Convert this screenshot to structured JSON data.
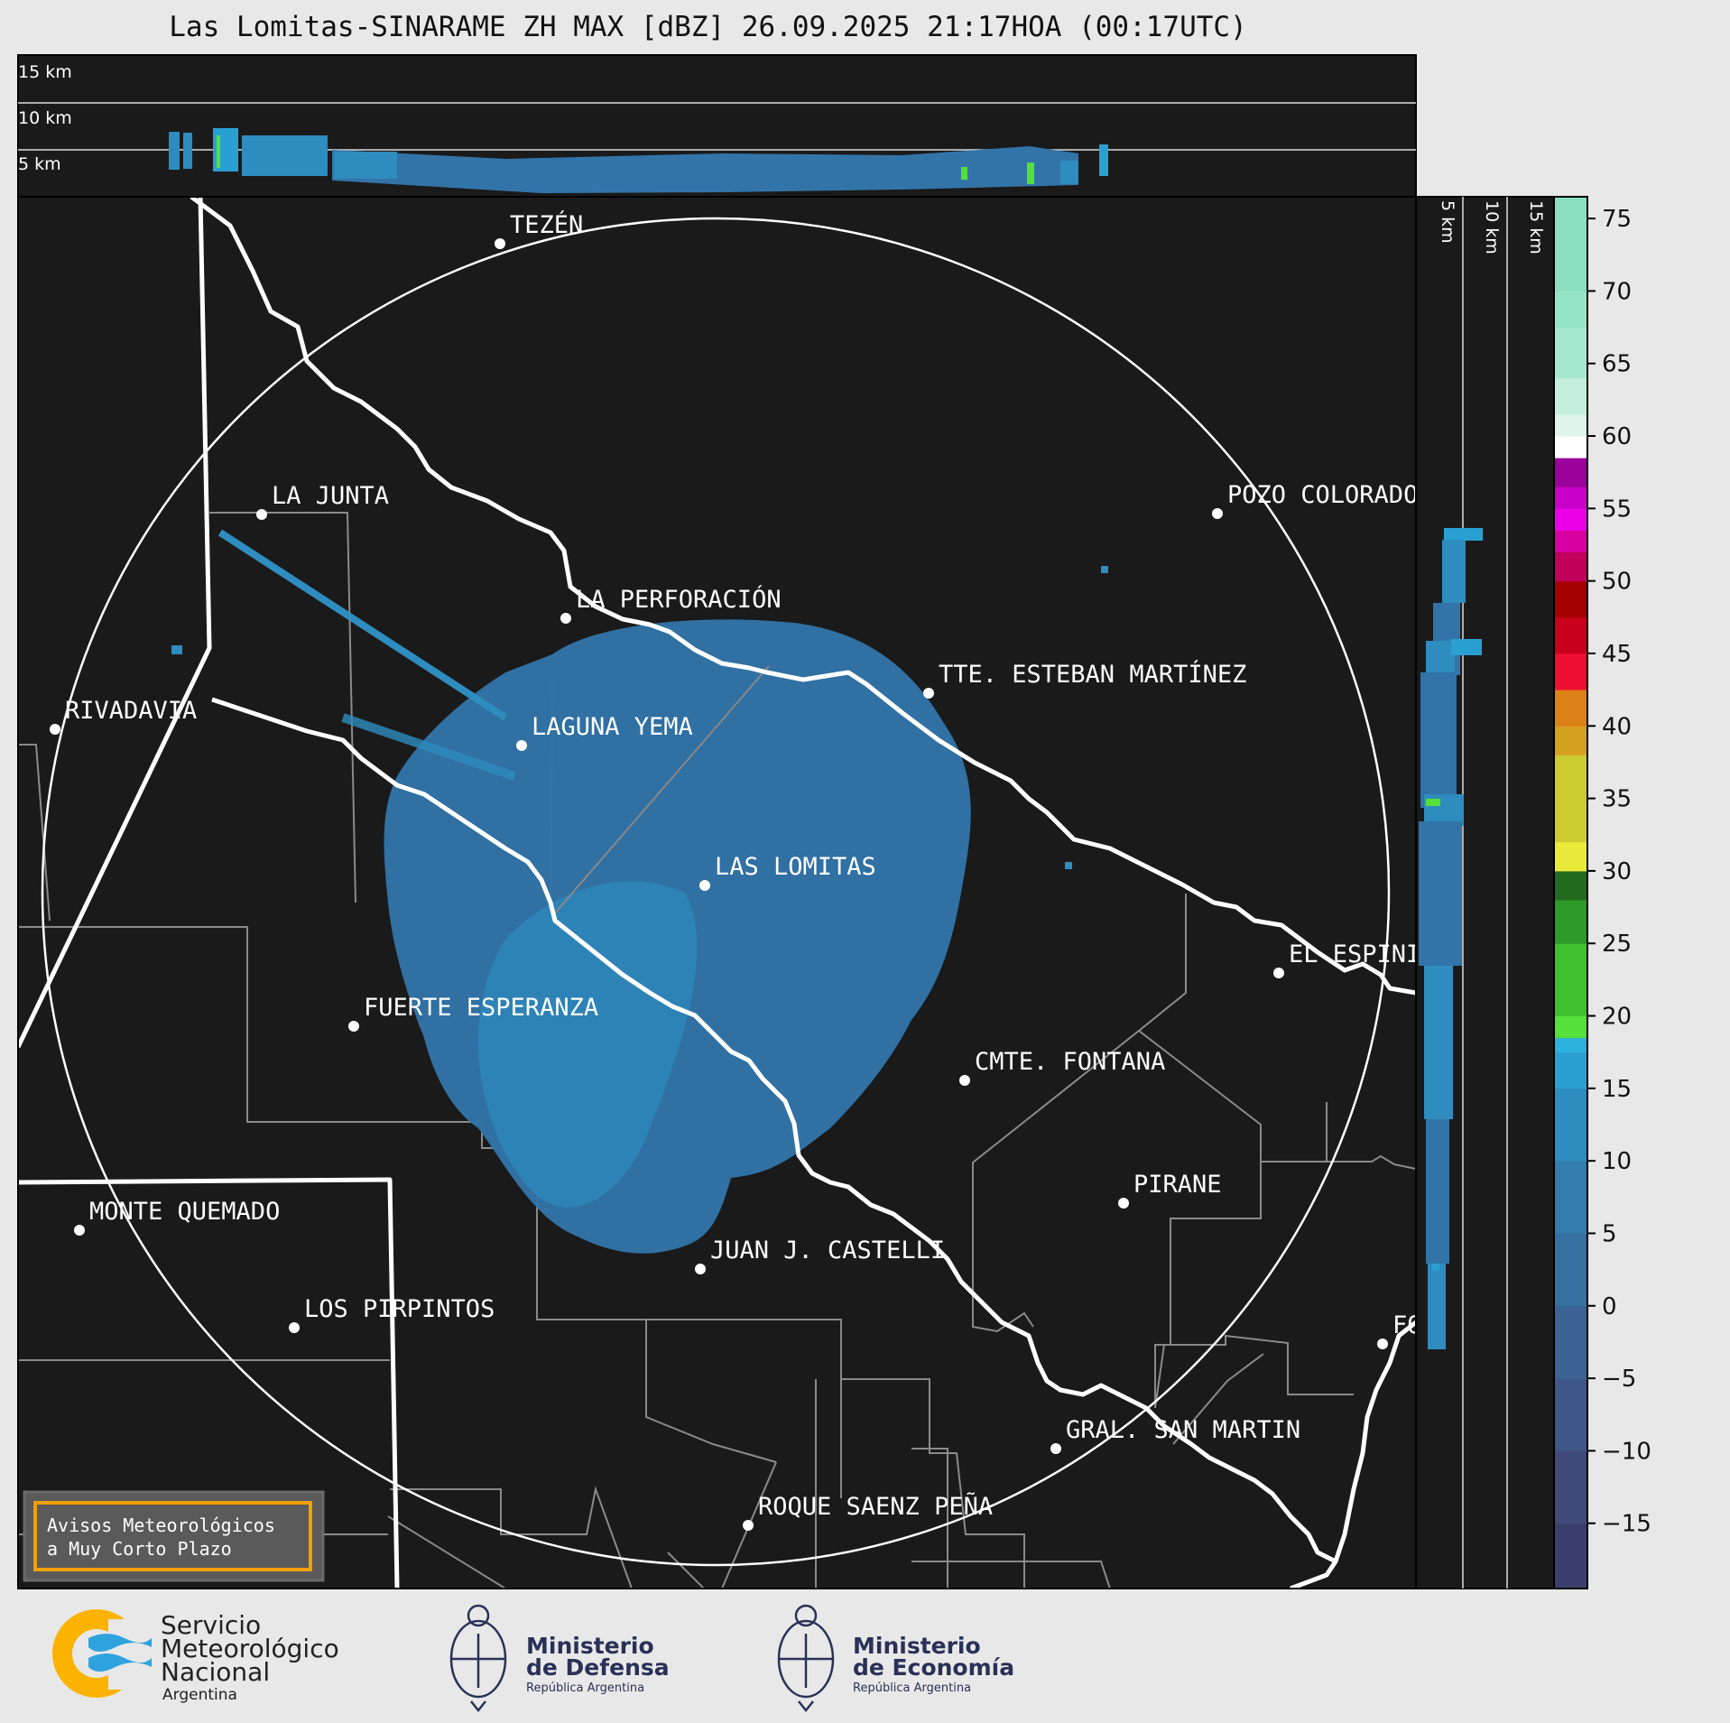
{
  "title": "Las Lomitas-SINARAME ZH MAX [dBZ] 26.09.2025 21:17HOA (00:17UTC)",
  "top_panel": {
    "labels": [
      "15 km",
      "10 km",
      "5 km"
    ]
  },
  "side_panel": {
    "labels": [
      "5 km",
      "10 km",
      "15 km"
    ]
  },
  "colorbar": {
    "unit": "dBZ",
    "range": [
      -19.5,
      76.5
    ],
    "ticks": [
      75,
      70,
      65,
      60,
      55,
      50,
      45,
      40,
      35,
      30,
      25,
      20,
      15,
      10,
      5,
      0,
      -5,
      -10,
      -15
    ],
    "tick_labels": [
      "75",
      "70",
      "65",
      "60",
      "55",
      "50",
      "45",
      "40",
      "35",
      "30",
      "25",
      "20",
      "15",
      "10",
      "5",
      "0",
      "−5",
      "−10",
      "−15"
    ],
    "bands": [
      [
        -19.5,
        -15,
        "#3b3f6e"
      ],
      [
        -15,
        -10,
        "#3f4a7a"
      ],
      [
        -10,
        -5,
        "#3f5688"
      ],
      [
        -5,
        0,
        "#3b6494"
      ],
      [
        0,
        5,
        "#3670a0"
      ],
      [
        5,
        10,
        "#327cae"
      ],
      [
        10,
        15,
        "#2e8cbe"
      ],
      [
        15,
        17.5,
        "#2aa0d2"
      ],
      [
        17.5,
        18.5,
        "#2cb0dc"
      ],
      [
        18.5,
        20,
        "#55e03a"
      ],
      [
        20,
        25,
        "#40c030"
      ],
      [
        25,
        28,
        "#2e9a28"
      ],
      [
        28,
        30,
        "#226b1e"
      ],
      [
        30,
        32,
        "#eaea3a"
      ],
      [
        32,
        38,
        "#cccc30"
      ],
      [
        38,
        40,
        "#d4a020"
      ],
      [
        40,
        42.5,
        "#dc8018"
      ],
      [
        42.5,
        45,
        "#ee1033"
      ],
      [
        45,
        47.5,
        "#c8001c"
      ],
      [
        47.5,
        50,
        "#a50000"
      ],
      [
        50,
        52,
        "#c0005a"
      ],
      [
        52,
        53.5,
        "#d800a0"
      ],
      [
        53.5,
        55,
        "#ec00e8"
      ],
      [
        55,
        56.5,
        "#c800c8"
      ],
      [
        56.5,
        58.5,
        "#9a009a"
      ],
      [
        58.5,
        60,
        "#ffffff"
      ],
      [
        60,
        61.5,
        "#dff5ec"
      ],
      [
        61.5,
        64,
        "#c4efdd"
      ],
      [
        64,
        67.5,
        "#a6e8cf"
      ],
      [
        67.5,
        70,
        "#96e4c6"
      ],
      [
        70,
        76.5,
        "#89dfbf"
      ]
    ]
  },
  "cities": [
    {
      "name": "TEZÉN"
    },
    {
      "name": "LA JUNTA"
    },
    {
      "name": "LA PERFORACIÓN"
    },
    {
      "name": "POZO COLORADO"
    },
    {
      "name": "RIVADAVIA"
    },
    {
      "name": "TTE. ESTEBAN MARTÍNEZ"
    },
    {
      "name": "LAGUNA YEMA"
    },
    {
      "name": "LAS LOMITAS"
    },
    {
      "name": "EL ESPINILLO"
    },
    {
      "name": "FUERTE ESPERANZA"
    },
    {
      "name": "CMTE. FONTANA"
    },
    {
      "name": "PIRANE"
    },
    {
      "name": "MONTE QUEMADO"
    },
    {
      "name": "JUAN J. CASTELLI"
    },
    {
      "name": "LOS PIRPINTOS"
    },
    {
      "name": "GRAL. SAN MARTIN"
    },
    {
      "name": "ROQUE SAENZ PEÑA"
    },
    {
      "name": "FORMOSA"
    }
  ],
  "alert_box": {
    "line1": "Avisos Meteorológicos",
    "line2": "a Muy Corto Plazo"
  },
  "logos": {
    "smn": {
      "line1": "Servicio",
      "line2": "Meteorológico",
      "line3": "Nacional",
      "line4": "Argentina"
    },
    "defensa": {
      "line1": "Ministerio",
      "line2": "de Defensa",
      "line3": "República Argentina"
    },
    "economia": {
      "line1": "Ministerio",
      "line2": "de Economía",
      "line3": "República Argentina"
    }
  },
  "colors": {
    "background": "#1a1a1a",
    "echo": "#3274a8",
    "alert_border": "#f0a000",
    "smn_orange": "#fcb300",
    "smn_blue": "#2fa3dd",
    "ministry_navy": "#2a3158"
  }
}
